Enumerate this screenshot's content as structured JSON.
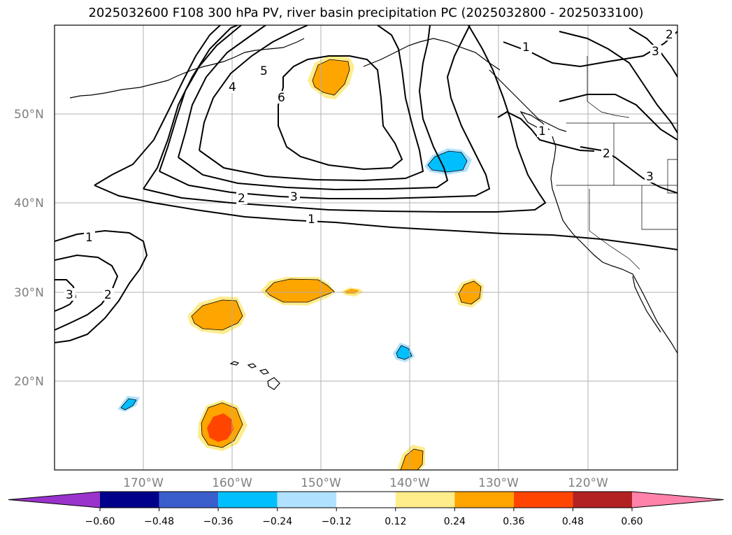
{
  "title": "2025032600 F108 300 hPa PV, river basin precipitation PC (2025032800 - 2025033100)",
  "map": {
    "lat_labels": [
      "50°N",
      "40°N",
      "30°N",
      "20°N"
    ],
    "lon_labels": [
      "170°W",
      "160°W",
      "150°W",
      "140°W",
      "130°W",
      "120°W"
    ],
    "contour_labels": [
      "1",
      "2",
      "3",
      "4",
      "5",
      "6",
      "1",
      "2",
      "3",
      "1",
      "2",
      "3",
      "1",
      "2",
      "3"
    ],
    "grid": true
  },
  "colorbar": {
    "ticks": [
      "−0.60",
      "−0.48",
      "−0.36",
      "−0.24",
      "−0.12",
      "0.12",
      "0.24",
      "0.36",
      "0.48",
      "0.60"
    ],
    "colors": [
      "#9933cc",
      "#00008b",
      "#3a5fcd",
      "#00bfff",
      "#b0e2ff",
      "#ffffff",
      "#ffec8b",
      "#ffa500",
      "#ff4500",
      "#b22222",
      "#ff82ab"
    ]
  },
  "colors": {
    "pos1": "#ffec8b",
    "pos2": "#ffa500",
    "pos3": "#ff4500",
    "neg1": "#b0e2ff",
    "neg2": "#00bfff"
  }
}
